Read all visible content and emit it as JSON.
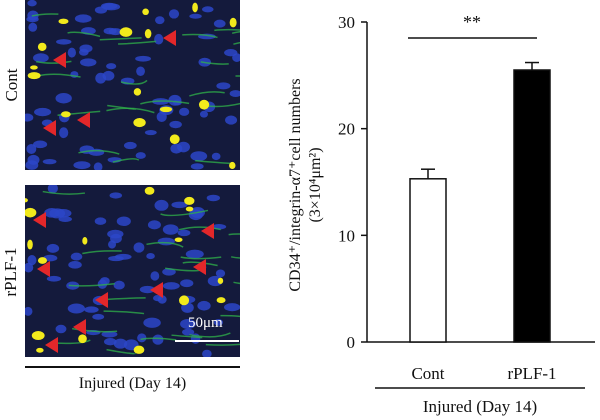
{
  "micrographs": {
    "row_labels": [
      "Cont",
      "rPLF-1"
    ],
    "scale_bar_label": "50μm",
    "caption": "Injured (Day 14)",
    "colors": {
      "background": "#141a3c",
      "nuclei": "#2b46c8",
      "green_stain": "#2fb34a",
      "yellow_stain": "#f2ea1c",
      "arrow": "#e3272a"
    }
  },
  "chart_data": {
    "type": "bar",
    "categories": [
      "Cont",
      "rPLF-1"
    ],
    "values": [
      15.3,
      25.5
    ],
    "errors": [
      0.9,
      0.7
    ],
    "bar_colors": [
      "#ffffff",
      "#000000"
    ],
    "ylim": [
      0,
      30
    ],
    "yticks": [
      0,
      10,
      20,
      30
    ],
    "ylabel": "CD34⁺/integrin-α7⁺ cell numbers (3×10⁴μm²)",
    "ylabel_lines": [
      "CD34⁺/integrin-α7⁺cell numbers",
      "(3×10⁴μm²)"
    ],
    "significance": "**",
    "xlabel": "Injured (Day 14)",
    "grid": false
  }
}
